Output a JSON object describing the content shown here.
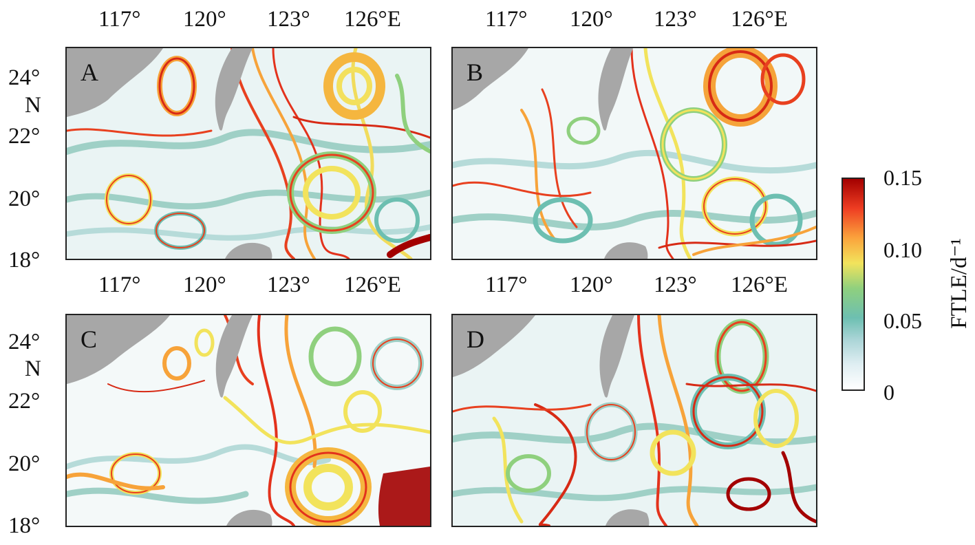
{
  "panels": [
    {
      "id": "A",
      "label": "A"
    },
    {
      "id": "B",
      "label": "B"
    },
    {
      "id": "C",
      "label": "C"
    },
    {
      "id": "D",
      "label": "D"
    }
  ],
  "axes": {
    "lon_ticks": [
      "117°",
      "120°",
      "123°",
      "126°E"
    ],
    "lat_ticks": [
      "24°",
      "22°",
      "20°",
      "18°"
    ],
    "lat_unit": "N"
  },
  "colorbar": {
    "title": "FTLE/d⁻¹",
    "ticks": [
      "0.15",
      "0.10",
      "0.05",
      "0"
    ],
    "colors": [
      "#ffffff",
      "#a9d4d6",
      "#6dbfb1",
      "#8fd07e",
      "#f2e35c",
      "#fba33c",
      "#ee3d22",
      "#a30000"
    ]
  },
  "colors": {
    "land": "#a7a7a7",
    "frame": "#222222"
  }
}
